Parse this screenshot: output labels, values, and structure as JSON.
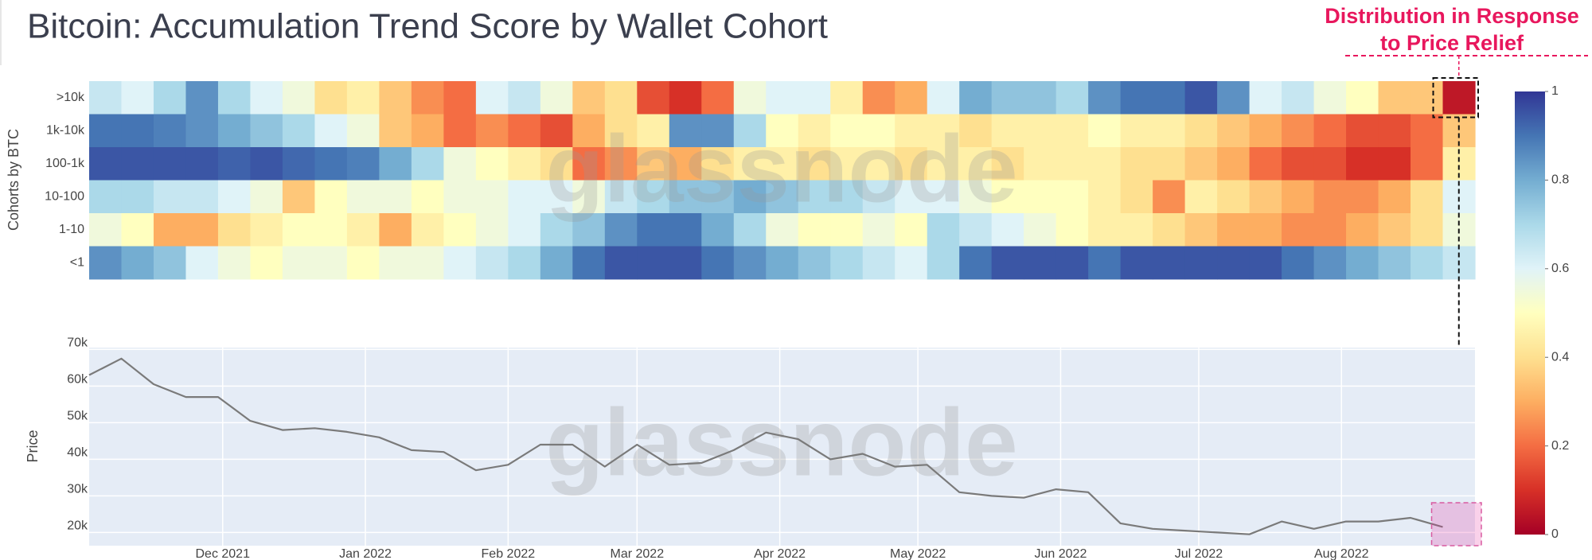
{
  "chart_data": [
    {
      "type": "heatmap",
      "title": "Bitcoin: Accumulation Trend Score by Wallet Cohort",
      "ylabel": "Cohorts by BTC",
      "watermark": "glassnode",
      "annotation": [
        "Distribution in Response",
        "to Price Relief"
      ],
      "xlim": [
        "2021-11-02",
        "2022-08-30"
      ],
      "x": [
        "2021-11-02",
        "2021-11-09",
        "2021-11-16",
        "2021-11-23",
        "2021-11-30",
        "2021-12-07",
        "2021-12-14",
        "2021-12-21",
        "2021-12-28",
        "2022-01-04",
        "2022-01-11",
        "2022-01-18",
        "2022-01-25",
        "2022-02-01",
        "2022-02-08",
        "2022-02-15",
        "2022-02-22",
        "2022-03-01",
        "2022-03-08",
        "2022-03-15",
        "2022-03-22",
        "2022-03-29",
        "2022-04-05",
        "2022-04-12",
        "2022-04-19",
        "2022-04-26",
        "2022-05-03",
        "2022-05-10",
        "2022-05-17",
        "2022-05-24",
        "2022-05-31",
        "2022-06-07",
        "2022-06-14",
        "2022-06-21",
        "2022-06-28",
        "2022-07-05",
        "2022-07-12",
        "2022-07-19",
        "2022-07-26",
        "2022-08-02",
        "2022-08-09",
        "2022-08-16",
        "2022-08-23"
      ],
      "series": [
        {
          "name": ">10k",
          "values": [
            0.65,
            0.6,
            0.7,
            0.85,
            0.7,
            0.6,
            0.55,
            0.4,
            0.45,
            0.35,
            0.25,
            0.2,
            0.6,
            0.65,
            0.55,
            0.35,
            0.4,
            0.15,
            0.1,
            0.2,
            0.55,
            0.6,
            0.6,
            0.45,
            0.25,
            0.3,
            0.6,
            0.8,
            0.75,
            0.75,
            0.7,
            0.85,
            0.9,
            0.9,
            0.95,
            0.85,
            0.6,
            0.65,
            0.55,
            0.5,
            0.35,
            0.35,
            0.05
          ]
        },
        {
          "name": "1k-10k",
          "values": [
            0.9,
            0.9,
            0.88,
            0.85,
            0.8,
            0.75,
            0.7,
            0.6,
            0.55,
            0.35,
            0.3,
            0.2,
            0.25,
            0.2,
            0.15,
            0.3,
            0.4,
            0.45,
            0.85,
            0.85,
            0.7,
            0.5,
            0.45,
            0.5,
            0.5,
            0.45,
            0.45,
            0.4,
            0.45,
            0.45,
            0.45,
            0.5,
            0.45,
            0.45,
            0.4,
            0.35,
            0.3,
            0.25,
            0.2,
            0.15,
            0.15,
            0.2,
            0.35
          ]
        },
        {
          "name": "100-1k",
          "values": [
            0.95,
            0.95,
            0.95,
            0.95,
            0.93,
            0.95,
            0.92,
            0.9,
            0.88,
            0.8,
            0.7,
            0.55,
            0.5,
            0.45,
            0.4,
            0.2,
            0.25,
            0.35,
            0.3,
            0.4,
            0.45,
            0.45,
            0.4,
            0.45,
            0.45,
            0.4,
            0.45,
            0.45,
            0.4,
            0.45,
            0.45,
            0.45,
            0.4,
            0.4,
            0.35,
            0.3,
            0.2,
            0.15,
            0.15,
            0.1,
            0.1,
            0.2,
            0.45
          ]
        },
        {
          "name": "10-100",
          "values": [
            0.7,
            0.7,
            0.65,
            0.65,
            0.6,
            0.55,
            0.35,
            0.5,
            0.55,
            0.55,
            0.5,
            0.55,
            0.55,
            0.6,
            0.6,
            0.55,
            0.65,
            0.7,
            0.75,
            0.75,
            0.8,
            0.75,
            0.7,
            0.7,
            0.65,
            0.6,
            0.6,
            0.55,
            0.5,
            0.5,
            0.5,
            0.45,
            0.4,
            0.25,
            0.45,
            0.4,
            0.35,
            0.3,
            0.25,
            0.25,
            0.3,
            0.4,
            0.6
          ]
        },
        {
          "name": "1-10",
          "values": [
            0.55,
            0.5,
            0.3,
            0.3,
            0.4,
            0.45,
            0.5,
            0.5,
            0.45,
            0.3,
            0.45,
            0.5,
            0.55,
            0.6,
            0.7,
            0.75,
            0.85,
            0.9,
            0.9,
            0.8,
            0.7,
            0.55,
            0.5,
            0.5,
            0.55,
            0.5,
            0.7,
            0.65,
            0.6,
            0.55,
            0.5,
            0.45,
            0.45,
            0.4,
            0.35,
            0.3,
            0.3,
            0.25,
            0.25,
            0.3,
            0.35,
            0.4,
            0.55
          ]
        },
        {
          "name": "<1",
          "values": [
            0.85,
            0.8,
            0.75,
            0.6,
            0.55,
            0.5,
            0.55,
            0.55,
            0.5,
            0.55,
            0.55,
            0.6,
            0.65,
            0.7,
            0.8,
            0.9,
            0.95,
            0.95,
            0.95,
            0.9,
            0.85,
            0.8,
            0.75,
            0.7,
            0.65,
            0.6,
            0.7,
            0.9,
            0.95,
            0.95,
            0.95,
            0.9,
            0.95,
            0.95,
            0.95,
            0.95,
            0.95,
            0.9,
            0.85,
            0.8,
            0.75,
            0.7,
            0.65
          ]
        }
      ],
      "colorscale": [
        "#a50026",
        "#d73027",
        "#f46d43",
        "#fdae61",
        "#fee090",
        "#ffffbf",
        "#e0f3f8",
        "#abd9e9",
        "#74add1",
        "#4575b4",
        "#313695"
      ],
      "zlim": [
        0,
        1
      ],
      "zticks": [
        0,
        0.2,
        0.4,
        0.6,
        0.8,
        1
      ]
    },
    {
      "type": "line",
      "ylabel": "Price",
      "watermark": "glassnode",
      "color": "#7a7a7a",
      "grid": true,
      "xlim": [
        "2021-11-02",
        "2022-08-30"
      ],
      "x": [
        "2021-11-02",
        "2021-11-09",
        "2021-11-16",
        "2021-11-23",
        "2021-11-30",
        "2021-12-07",
        "2021-12-14",
        "2021-12-21",
        "2021-12-28",
        "2022-01-04",
        "2022-01-11",
        "2022-01-18",
        "2022-01-25",
        "2022-02-01",
        "2022-02-08",
        "2022-02-15",
        "2022-02-22",
        "2022-03-01",
        "2022-03-08",
        "2022-03-15",
        "2022-03-22",
        "2022-03-29",
        "2022-04-05",
        "2022-04-12",
        "2022-04-19",
        "2022-04-26",
        "2022-05-03",
        "2022-05-10",
        "2022-05-17",
        "2022-05-24",
        "2022-05-31",
        "2022-06-07",
        "2022-06-14",
        "2022-06-21",
        "2022-06-28",
        "2022-07-05",
        "2022-07-12",
        "2022-07-19",
        "2022-07-26",
        "2022-08-02",
        "2022-08-09",
        "2022-08-16",
        "2022-08-23"
      ],
      "values": [
        63000,
        67500,
        60500,
        57000,
        57000,
        50500,
        48000,
        48500,
        47500,
        46000,
        42500,
        42000,
        37000,
        38500,
        44000,
        44000,
        38000,
        44000,
        38500,
        39000,
        42500,
        47300,
        45500,
        40000,
        41500,
        38000,
        38500,
        31000,
        30000,
        29500,
        31800,
        31000,
        22500,
        21000,
        20500,
        20000,
        19500,
        23000,
        21000,
        23000,
        23000,
        24000,
        21500
      ],
      "ylim": [
        16400,
        70500
      ],
      "yticks": [
        {
          "value": 20000,
          "label": "20k"
        },
        {
          "value": 30000,
          "label": "30k"
        },
        {
          "value": 40000,
          "label": "40k"
        },
        {
          "value": 50000,
          "label": "50k"
        },
        {
          "value": 60000,
          "label": "60k"
        },
        {
          "value": 70000,
          "label": "70k"
        }
      ],
      "xticks": [
        {
          "value": "2021-12-01",
          "label": "Dec 2021"
        },
        {
          "value": "2022-01-01",
          "label": "Jan 2022"
        },
        {
          "value": "2022-02-01",
          "label": "Feb 2022"
        },
        {
          "value": "2022-03-01",
          "label": "Mar 2022"
        },
        {
          "value": "2022-04-01",
          "label": "Apr 2022"
        },
        {
          "value": "2022-05-01",
          "label": "May 2022"
        },
        {
          "value": "2022-06-01",
          "label": "Jun 2022"
        },
        {
          "value": "2022-07-01",
          "label": "Jul 2022"
        },
        {
          "value": "2022-08-01",
          "label": "Aug 2022"
        }
      ]
    }
  ]
}
